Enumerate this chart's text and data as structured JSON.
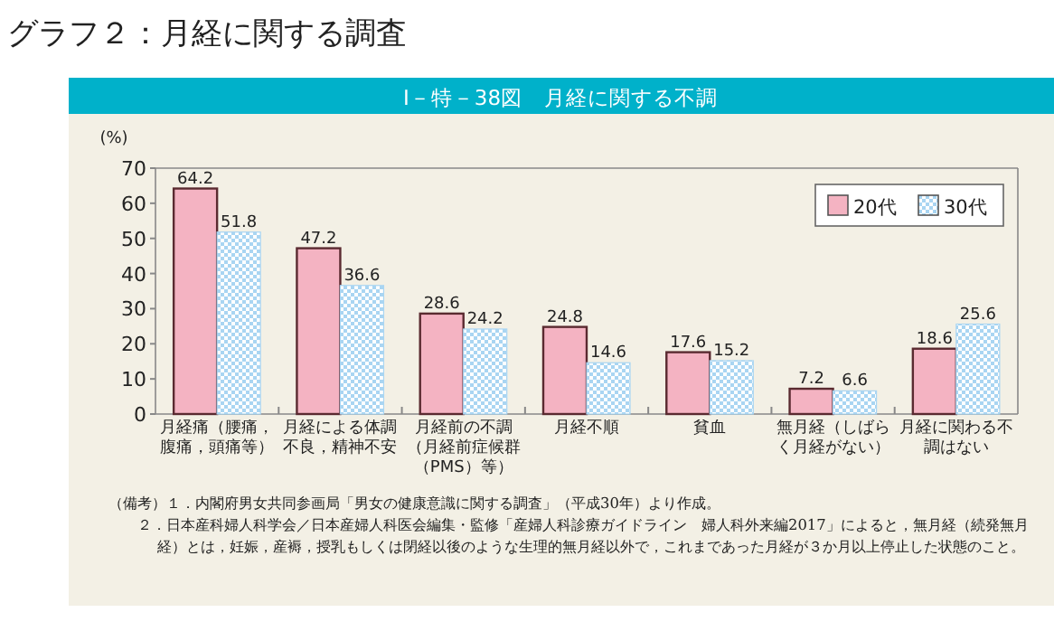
{
  "chart_data": {
    "type": "bar",
    "title": "Ⅰ－特－38図　月経に関する不調",
    "subtitle": "グラフ２：月経に関する調査",
    "ylabel": "(%)",
    "categories": [
      "月経痛（腰痛，腹痛，頭痛等）",
      "月経による体調不良，精神不安",
      "月経前の不調（月経前症候群（PMS）等）",
      "月経不順",
      "貧血",
      "無月経（しばらく月経がない）",
      "月経に関わる不調はない"
    ],
    "series": [
      {
        "name": "20代",
        "color": "#f4b3c2",
        "values": [
          64.2,
          47.2,
          28.6,
          24.8,
          17.6,
          7.2,
          18.6
        ]
      },
      {
        "name": "30代",
        "color": "#a9d5f2",
        "values": [
          51.8,
          36.6,
          24.2,
          14.6,
          15.2,
          6.6,
          25.6
        ]
      }
    ],
    "ylim": [
      0,
      70
    ],
    "yticks": [
      0,
      10,
      20,
      30,
      40,
      50,
      60,
      70
    ],
    "data_labels": true,
    "legend": "top right",
    "grid": false,
    "annotations": [
      "（備考）１．内閣府男女共同参画局「男女の健康意識に関する調査」（平成30年）より作成。",
      "２．日本産科婦人科学会／日本産婦人科医会編集・監修「産婦人科診療ガイドライン　婦人科外来編2017」によると，無月経（続発無月経）とは，妊娠，産褥，授乳もしくは閉経以後のような生理的無月経以外で，これまであった月経が３か月以上停止した状態のこと。"
    ]
  }
}
